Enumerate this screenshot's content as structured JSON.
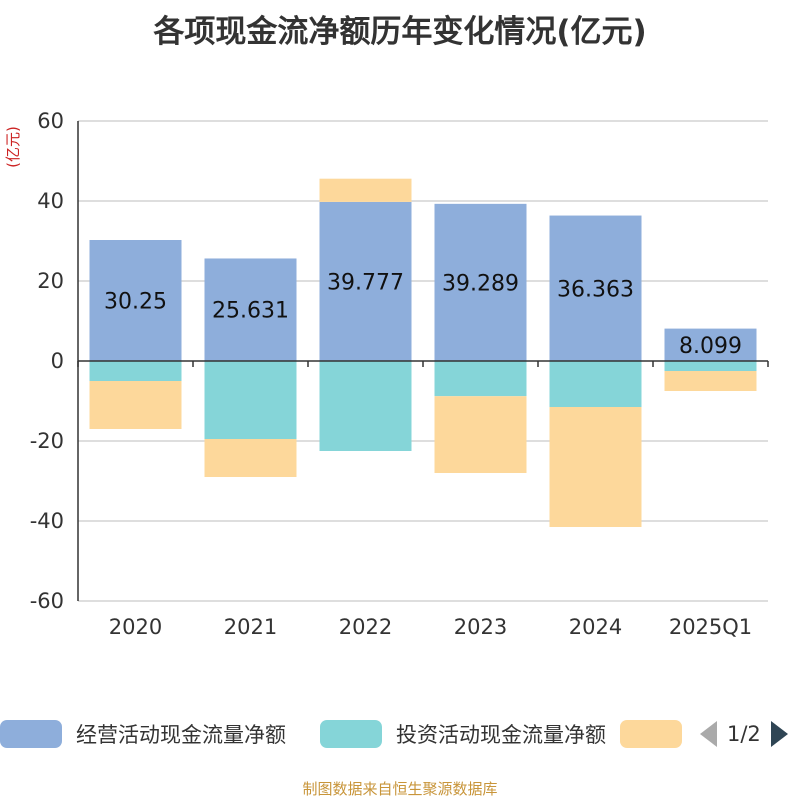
{
  "title": "各项现金流净额历年变化情况(亿元)",
  "source": "制图数据来自恒生聚源数据库",
  "legend": {
    "page": "1/2",
    "items": [
      {
        "label": "经营活动现金流量净额",
        "color": "#8eaedb"
      },
      {
        "label": "投资活动现金流量净额",
        "color": "#85d5d8"
      },
      {
        "label": "",
        "color": "#fdd89b"
      }
    ]
  },
  "chart_data": {
    "type": "bar",
    "stacked": true,
    "categories": [
      "2020",
      "2021",
      "2022",
      "2023",
      "2024",
      "2025Q1"
    ],
    "ylabel": "(亿元)",
    "ylim": [
      -60,
      60
    ],
    "yticks": [
      60,
      40,
      20,
      0,
      -20,
      -40,
      -60
    ],
    "grid": true,
    "legend_position": "bottom",
    "series": [
      {
        "name": "经营活动现金流量净额",
        "color": "#8eaedb",
        "values": [
          30.25,
          25.631,
          39.777,
          39.289,
          36.363,
          8.099
        ],
        "labels": [
          "30.25",
          "25.631",
          "39.777",
          "39.289",
          "36.363",
          "8.099"
        ]
      },
      {
        "name": "投资活动现金流量净额",
        "color": "#85d5d8",
        "values": [
          -5,
          -19.5,
          -22.5,
          -8.8,
          -11.5,
          -2.5
        ]
      },
      {
        "color": "#fdd89b",
        "values": [
          -12,
          -9.5,
          5.8,
          -19.2,
          -30,
          -5
        ]
      }
    ]
  }
}
